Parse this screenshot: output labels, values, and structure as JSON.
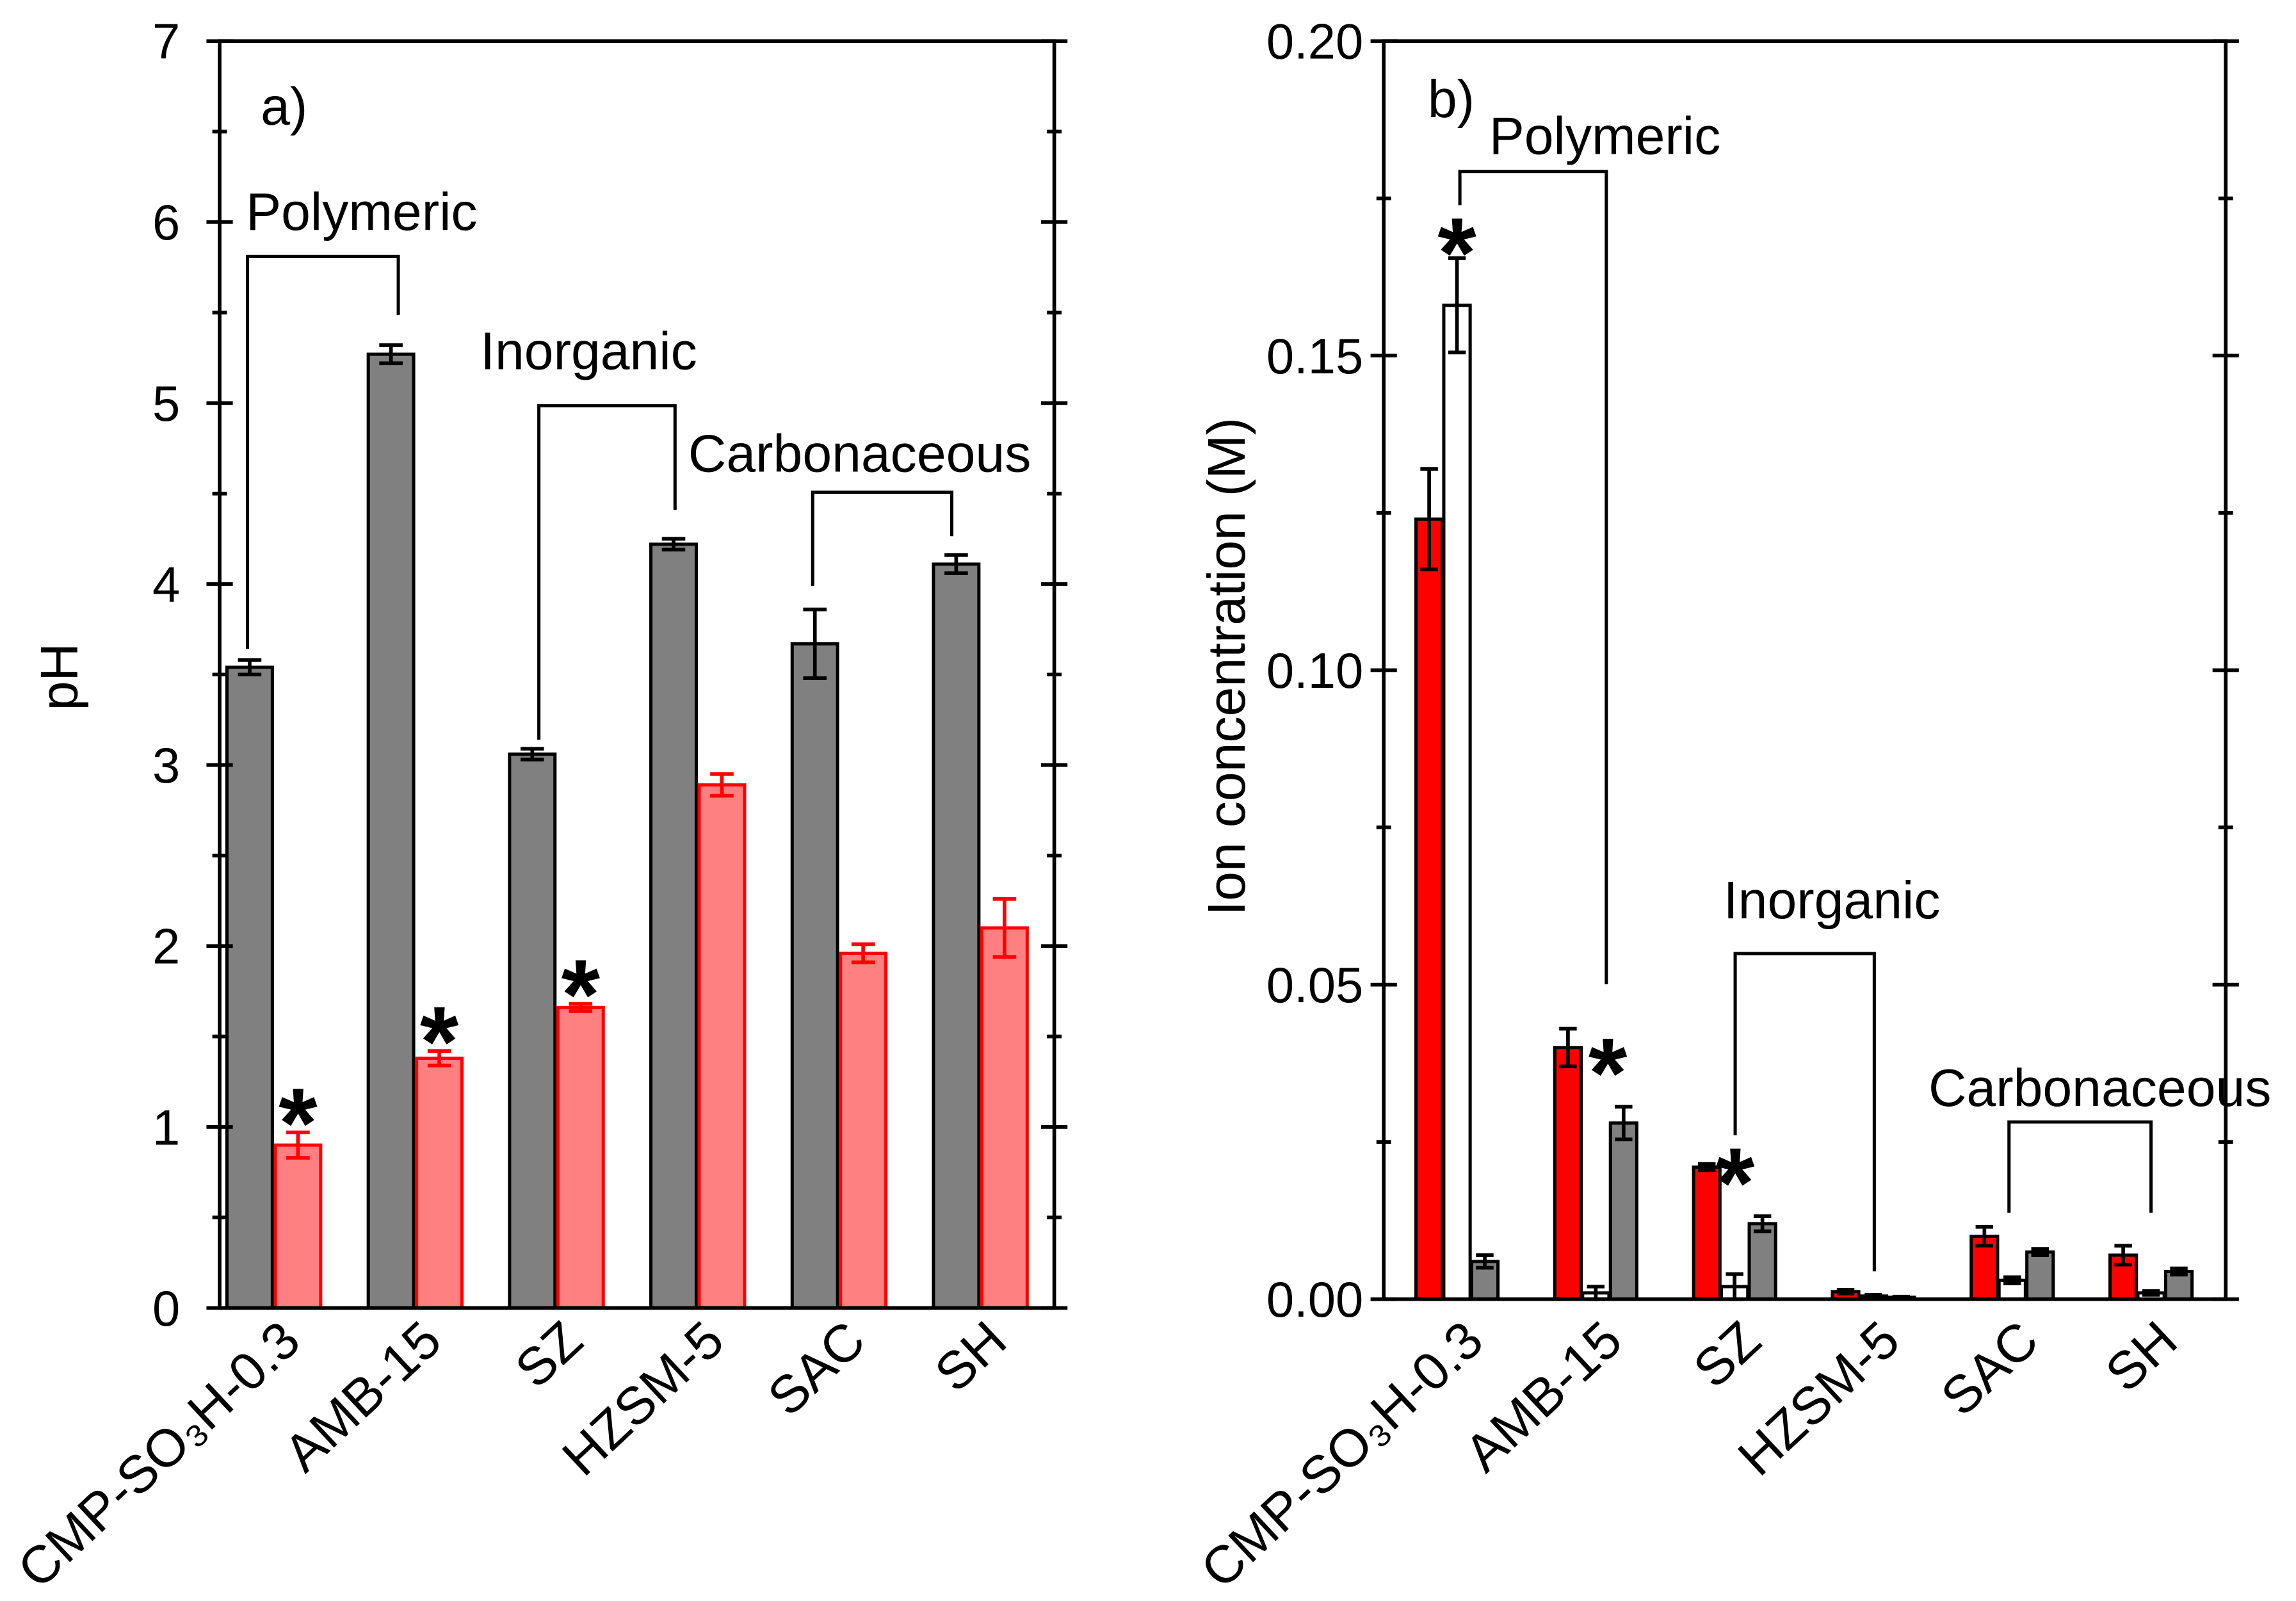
{
  "chart_data": [
    {
      "type": "bar",
      "panel_label": "a)",
      "ylabel": "pH",
      "ylim": [
        0,
        7
      ],
      "yticks": [
        {
          "value": 0,
          "label": "0"
        },
        {
          "value": 1,
          "label": "1"
        },
        {
          "value": 2,
          "label": "2"
        },
        {
          "value": 3,
          "label": "3"
        },
        {
          "value": 4,
          "label": "4"
        },
        {
          "value": 5,
          "label": "5"
        },
        {
          "value": 6,
          "label": "6"
        },
        {
          "value": 7,
          "label": "7"
        }
      ],
      "minor_tick_step": 0.5,
      "grid": false,
      "categories": [
        "CMP-SO₃H-0.3",
        "AMB-15",
        "SZ",
        "HZSM-5",
        "SAC",
        "SH"
      ],
      "series": [
        {
          "color": "#808080",
          "edge_color": "#000000",
          "error_color": "#000000",
          "values": [
            3.54,
            5.27,
            3.06,
            4.22,
            3.67,
            4.11
          ],
          "errors": [
            0.04,
            0.05,
            0.03,
            0.03,
            0.19,
            0.05
          ]
        },
        {
          "color": "#ff8080",
          "edge_color": "#ff0000",
          "error_color": "#ff0000",
          "values": [
            0.9,
            1.38,
            1.66,
            2.89,
            1.96,
            2.1
          ],
          "errors": [
            0.07,
            0.04,
            0.02,
            0.06,
            0.05,
            0.16
          ]
        }
      ],
      "groups": [
        {
          "label": "Polymeric",
          "categories": [
            0,
            1
          ]
        },
        {
          "label": "Inorganic",
          "categories": [
            2,
            3
          ]
        },
        {
          "label": "Carbonaceous",
          "categories": [
            4,
            5
          ]
        }
      ],
      "significance": [
        {
          "category": 0,
          "series": 1,
          "symbol": "*"
        },
        {
          "category": 1,
          "series": 1,
          "symbol": "*"
        },
        {
          "category": 2,
          "series": 1,
          "symbol": "*"
        }
      ]
    },
    {
      "type": "bar",
      "panel_label": "b)",
      "ylabel": "Ion concentration (M)",
      "ylim": [
        0,
        0.2
      ],
      "yticks": [
        {
          "value": 0,
          "label": "0.00"
        },
        {
          "value": 0.05,
          "label": "0.05"
        },
        {
          "value": 0.1,
          "label": "0.10"
        },
        {
          "value": 0.15,
          "label": "0.15"
        },
        {
          "value": 0.2,
          "label": "0.20"
        }
      ],
      "minor_tick_step": 0.025,
      "grid": false,
      "categories": [
        "CMP-SO₃H-0.3",
        "AMB-15",
        "SZ",
        "HZSM-5",
        "SAC",
        "SH"
      ],
      "series": [
        {
          "color": "#ff0000",
          "edge_color": "#000000",
          "error_color": "#000000",
          "values": [
            0.124,
            0.04,
            0.021,
            0.0012,
            0.01,
            0.007
          ],
          "errors": [
            0.008,
            0.003,
            0.0005,
            0.0003,
            0.0015,
            0.0015
          ]
        },
        {
          "color": "#ffffff",
          "edge_color": "#000000",
          "error_color": "#000000",
          "values": [
            0.158,
            0.001,
            0.002,
            0.0005,
            0.003,
            0.001
          ],
          "errors": [
            0.0075,
            0.001,
            0.002,
            0.0002,
            0.0005,
            0.0003
          ]
        },
        {
          "color": "#808080",
          "edge_color": "#000000",
          "error_color": "#000000",
          "values": [
            0.006,
            0.028,
            0.012,
            0.0003,
            0.0075,
            0.0044
          ],
          "errors": [
            0.001,
            0.0026,
            0.0012,
            0.0001,
            0.0005,
            0.0005
          ]
        }
      ],
      "groups": [
        {
          "label": "Polymeric",
          "categories": [
            0,
            1
          ]
        },
        {
          "label": "Inorganic",
          "categories": [
            2,
            3
          ]
        },
        {
          "label": "Carbonaceous",
          "categories": [
            4,
            5
          ]
        }
      ],
      "significance": [
        {
          "category": 0,
          "series": 1,
          "symbol": "*"
        },
        {
          "category": 1,
          "series": 1,
          "symbol": "*"
        },
        {
          "category": 2,
          "series": 1,
          "symbol": "*"
        }
      ]
    }
  ]
}
